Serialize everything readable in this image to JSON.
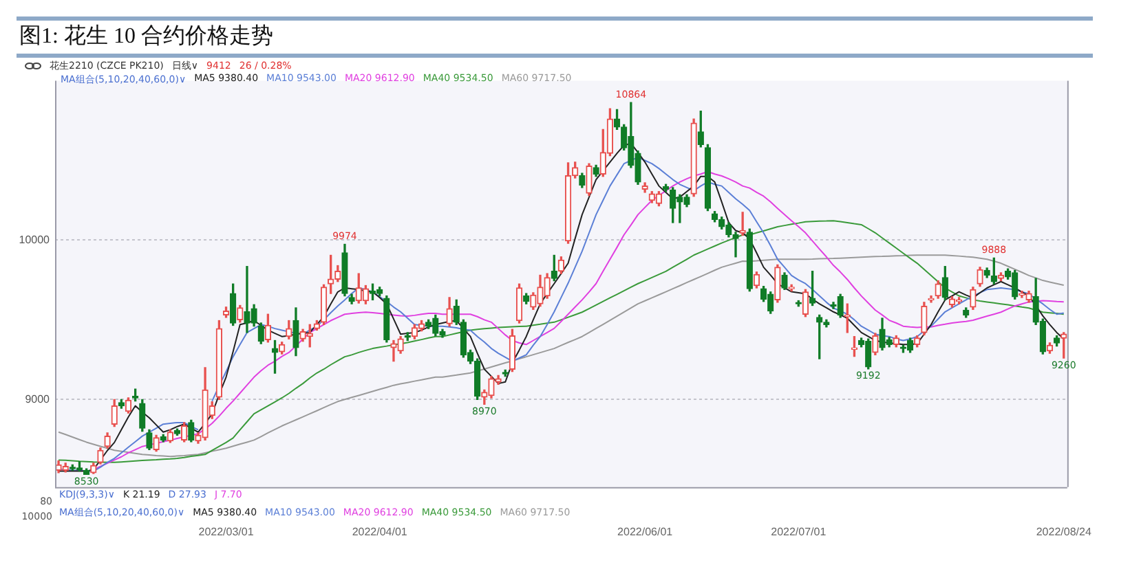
{
  "chart_data": {
    "type": "candlestick",
    "title": "图1: 花生 10 合约价格走势",
    "categories": [
      null,
      null,
      null,
      null,
      null,
      null,
      null,
      null,
      null,
      null,
      null,
      null,
      null,
      null,
      null,
      null,
      null,
      null,
      null,
      null,
      null,
      null,
      null,
      null,
      "2022/03/01",
      null,
      null,
      null,
      null,
      null,
      null,
      null,
      null,
      null,
      null,
      null,
      null,
      null,
      null,
      null,
      null,
      null,
      null,
      null,
      null,
      null,
      "2022/04/01",
      null,
      null,
      null,
      null,
      null,
      null,
      null,
      null,
      null,
      null,
      null,
      null,
      null,
      null,
      null,
      null,
      null,
      null,
      null,
      null,
      null,
      null,
      null,
      null,
      null,
      null,
      null,
      null,
      null,
      null,
      null,
      null,
      null,
      null,
      null,
      null,
      null,
      "2022/06/01",
      null,
      null,
      null,
      null,
      null,
      null,
      null,
      null,
      null,
      null,
      null,
      null,
      null,
      null,
      null,
      null,
      null,
      null,
      null,
      null,
      null,
      "2022/07/01",
      null,
      null,
      null,
      null,
      null,
      null,
      null,
      null,
      null,
      null,
      null,
      null,
      null,
      null,
      null,
      null,
      null,
      null,
      null,
      null,
      null,
      null,
      null,
      null,
      null,
      null,
      null,
      null,
      null,
      null,
      null,
      null,
      null,
      null,
      null,
      null,
      null,
      "2022/08/24"
    ],
    "ohlc": [
      [
        8555,
        8615,
        8540,
        8590
      ],
      [
        8555,
        8600,
        8545,
        8580
      ],
      [
        8575,
        8590,
        8555,
        8565
      ],
      [
        8570,
        8610,
        8550,
        8560
      ],
      [
        8555,
        8565,
        8530,
        8530
      ],
      [
        8540,
        8600,
        8535,
        8585
      ],
      [
        8605,
        8695,
        8595,
        8680
      ],
      [
        8705,
        8790,
        8695,
        8770
      ],
      [
        8845,
        9000,
        8830,
        8960
      ],
      [
        8980,
        9000,
        8945,
        8960
      ],
      [
        8925,
        9010,
        8915,
        8995
      ],
      [
        9020,
        9065,
        8990,
        9010
      ],
      [
        8975,
        9000,
        8800,
        8820
      ],
      [
        8790,
        8810,
        8685,
        8695
      ],
      [
        8685,
        8775,
        8675,
        8760
      ],
      [
        8765,
        8780,
        8735,
        8745
      ],
      [
        8740,
        8810,
        8730,
        8795
      ],
      [
        8805,
        8815,
        8775,
        8785
      ],
      [
        8745,
        8855,
        8735,
        8835
      ],
      [
        8855,
        8870,
        8735,
        8745
      ],
      [
        8740,
        8790,
        8725,
        8775
      ],
      [
        8760,
        9200,
        8745,
        9060
      ],
      [
        8900,
        8985,
        8880,
        8960
      ],
      [
        9015,
        9495,
        9000,
        9445
      ],
      [
        9530,
        9580,
        9515,
        9555
      ],
      [
        9665,
        9725,
        9465,
        9480
      ],
      [
        9500,
        9590,
        9485,
        9575
      ],
      [
        9550,
        9835,
        9420,
        9480
      ],
      [
        9570,
        9595,
        9460,
        9480
      ],
      [
        9460,
        9480,
        9350,
        9365
      ],
      [
        9375,
        9535,
        9360,
        9465
      ],
      [
        9320,
        9370,
        9165,
        9295
      ],
      [
        9300,
        9360,
        9285,
        9345
      ],
      [
        9395,
        9495,
        9380,
        9445
      ],
      [
        9495,
        9575,
        9275,
        9325
      ],
      [
        9380,
        9440,
        9365,
        9425
      ],
      [
        9395,
        9470,
        9330,
        9415
      ],
      [
        9445,
        9495,
        9435,
        9475
      ],
      [
        9485,
        9720,
        9470,
        9705
      ],
      [
        9725,
        9905,
        9665,
        9755
      ],
      [
        9755,
        9840,
        9740,
        9805
      ],
      [
        9920,
        9974,
        9650,
        9665
      ],
      [
        9640,
        9660,
        9600,
        9615
      ],
      [
        9620,
        9790,
        9605,
        9700
      ],
      [
        9620,
        9715,
        9600,
        9695
      ],
      [
        9680,
        9725,
        9625,
        9665
      ],
      [
        9690,
        9705,
        9650,
        9665
      ],
      [
        9635,
        9650,
        9360,
        9375
      ],
      [
        9325,
        9370,
        9240,
        9350
      ],
      [
        9305,
        9395,
        9290,
        9380
      ],
      [
        9400,
        9420,
        9370,
        9390
      ],
      [
        9395,
        9470,
        9380,
        9450
      ],
      [
        9445,
        9495,
        9430,
        9475
      ],
      [
        9485,
        9500,
        9445,
        9460
      ],
      [
        9510,
        9530,
        9400,
        9415
      ],
      [
        9425,
        9440,
        9390,
        9405
      ],
      [
        9475,
        9640,
        9460,
        9570
      ],
      [
        9585,
        9625,
        9470,
        9485
      ],
      [
        9485,
        9500,
        9265,
        9280
      ],
      [
        9295,
        9310,
        9225,
        9240
      ],
      [
        9240,
        9255,
        9000,
        9020
      ],
      [
        9015,
        9060,
        8970,
        9045
      ],
      [
        9025,
        9145,
        9010,
        9130
      ],
      [
        9110,
        9150,
        9095,
        9130
      ],
      [
        9170,
        9185,
        9145,
        9160
      ],
      [
        9190,
        9440,
        9175,
        9400
      ],
      [
        9495,
        9725,
        9480,
        9700
      ],
      [
        9650,
        9665,
        9600,
        9615
      ],
      [
        9580,
        9670,
        9565,
        9655
      ],
      [
        9600,
        9780,
        9585,
        9705
      ],
      [
        9650,
        9790,
        9635,
        9765
      ],
      [
        9805,
        9905,
        9745,
        9760
      ],
      [
        9805,
        9895,
        9790,
        9875
      ],
      [
        9995,
        10485,
        9980,
        10405
      ],
      [
        10405,
        10490,
        10390,
        10455
      ],
      [
        10405,
        10420,
        10330,
        10345
      ],
      [
        10295,
        10480,
        10280,
        10465
      ],
      [
        10455,
        10470,
        10400,
        10415
      ],
      [
        10415,
        10695,
        10400,
        10550
      ],
      [
        10545,
        10825,
        10530,
        10760
      ],
      [
        10760,
        10820,
        10695,
        10710
      ],
      [
        10710,
        10725,
        10565,
        10580
      ],
      [
        10650,
        10864,
        10455,
        10470
      ],
      [
        10545,
        10560,
        10350,
        10365
      ],
      [
        10320,
        10360,
        10300,
        10340
      ],
      [
        10250,
        10305,
        10235,
        10290
      ],
      [
        10230,
        10305,
        10215,
        10290
      ],
      [
        10335,
        10350,
        10305,
        10320
      ],
      [
        10315,
        10330,
        10110,
        10200
      ],
      [
        10270,
        10285,
        10110,
        10240
      ],
      [
        10270,
        10285,
        10210,
        10225
      ],
      [
        10290,
        10760,
        10275,
        10735
      ],
      [
        10680,
        10810,
        10585,
        10600
      ],
      [
        10580,
        10600,
        10185,
        10200
      ],
      [
        10165,
        10180,
        10115,
        10130
      ],
      [
        10130,
        10145,
        10070,
        10085
      ],
      [
        10095,
        10110,
        10020,
        10035
      ],
      [
        10035,
        10050,
        9895,
        10010
      ],
      [
        10045,
        10175,
        10030,
        10060
      ],
      [
        10050,
        10070,
        9680,
        9695
      ],
      [
        9715,
        9800,
        9700,
        9785
      ],
      [
        9695,
        9710,
        9615,
        9630
      ],
      [
        9660,
        9675,
        9540,
        9555
      ],
      [
        9625,
        9845,
        9610,
        9830
      ],
      [
        9780,
        9795,
        9690,
        9700
      ],
      [
        9695,
        9720,
        9680,
        9705
      ],
      [
        9605,
        9620,
        9585,
        9600
      ],
      [
        9535,
        9690,
        9520,
        9675
      ],
      [
        9635,
        9805,
        9590,
        9605
      ],
      [
        9515,
        9530,
        9255,
        9485
      ],
      [
        9485,
        9500,
        9455,
        9470
      ],
      [
        9595,
        9610,
        9570,
        9585
      ],
      [
        9645,
        9660,
        9515,
        9530
      ],
      [
        9520,
        9600,
        9420,
        9530
      ],
      [
        9315,
        9395,
        9270,
        9320
      ],
      [
        9370,
        9385,
        9330,
        9345
      ],
      [
        9365,
        9380,
        9192,
        9205
      ],
      [
        9295,
        9415,
        9280,
        9400
      ],
      [
        9440,
        9510,
        9310,
        9325
      ],
      [
        9375,
        9390,
        9330,
        9345
      ],
      [
        9345,
        9400,
        9330,
        9385
      ],
      [
        9325,
        9340,
        9295,
        9320
      ],
      [
        9370,
        9385,
        9295,
        9310
      ],
      [
        9345,
        9400,
        9330,
        9385
      ],
      [
        9420,
        9610,
        9405,
        9585
      ],
      [
        9625,
        9650,
        9610,
        9630
      ],
      [
        9650,
        9745,
        9635,
        9725
      ],
      [
        9765,
        9835,
        9625,
        9640
      ],
      [
        9595,
        9645,
        9580,
        9630
      ],
      [
        9615,
        9640,
        9600,
        9625
      ],
      [
        9560,
        9575,
        9515,
        9530
      ],
      [
        9580,
        9705,
        9565,
        9690
      ],
      [
        9725,
        9830,
        9710,
        9815
      ],
      [
        9810,
        9825,
        9765,
        9780
      ],
      [
        9775,
        9888,
        9725,
        9740
      ],
      [
        9760,
        9795,
        9745,
        9780
      ],
      [
        9805,
        9820,
        9755,
        9770
      ],
      [
        9795,
        9810,
        9630,
        9645
      ],
      [
        9655,
        9680,
        9640,
        9665
      ],
      [
        9625,
        9680,
        9610,
        9665
      ],
      [
        9645,
        9760,
        9470,
        9485
      ],
      [
        9490,
        9505,
        9285,
        9300
      ],
      [
        9305,
        9355,
        9290,
        9340
      ],
      [
        9385,
        9400,
        9335,
        9355
      ],
      [
        9385,
        9420,
        9260,
        9410
      ]
    ],
    "colors": [
      "#e8514f",
      "#e8514f",
      "#107c27",
      "#107c27",
      "#107c27",
      "#e8514f",
      "#e8514f",
      "#e8514f",
      "#e8514f",
      "#107c27",
      "#e8514f",
      "#107c27",
      "#107c27",
      "#107c27",
      "#e8514f",
      "#107c27",
      "#e8514f",
      "#107c27",
      "#e8514f",
      "#107c27",
      "#e8514f",
      "#e8514f",
      "#e8514f",
      "#e8514f",
      "#e8514f",
      "#107c27",
      "#e8514f",
      "#107c27",
      "#107c27",
      "#107c27",
      "#e8514f",
      "#107c27",
      "#e8514f",
      "#e8514f",
      "#107c27",
      "#e8514f",
      "#e8514f",
      "#e8514f",
      "#e8514f",
      "#e8514f",
      "#e8514f",
      "#107c27",
      "#107c27",
      "#e8514f",
      "#e8514f",
      "#107c27",
      "#107c27",
      "#107c27",
      "#e8514f",
      "#e8514f",
      "#107c27",
      "#e8514f",
      "#e8514f",
      "#107c27",
      "#107c27",
      "#107c27",
      "#e8514f",
      "#107c27",
      "#107c27",
      "#107c27",
      "#107c27",
      "#e8514f",
      "#e8514f",
      "#e8514f",
      "#107c27",
      "#e8514f",
      "#e8514f",
      "#107c27",
      "#e8514f",
      "#e8514f",
      "#e8514f",
      "#107c27",
      "#e8514f",
      "#e8514f",
      "#e8514f",
      "#107c27",
      "#e8514f",
      "#107c27",
      "#e8514f",
      "#e8514f",
      "#107c27",
      "#107c27",
      "#107c27",
      "#107c27",
      "#e8514f",
      "#e8514f",
      "#e8514f",
      "#107c27",
      "#107c27",
      "#107c27",
      "#107c27",
      "#e8514f",
      "#107c27",
      "#107c27",
      "#107c27",
      "#107c27",
      "#107c27",
      "#107c27",
      "#e8514f",
      "#107c27",
      "#e8514f",
      "#107c27",
      "#107c27",
      "#e8514f",
      "#107c27",
      "#e8514f",
      "#107c27",
      "#e8514f",
      "#107c27",
      "#107c27",
      "#107c27",
      "#107c27",
      "#107c27",
      "#e8514f",
      "#e8514f",
      "#107c27",
      "#107c27",
      "#e8514f",
      "#107c27",
      "#107c27",
      "#e8514f",
      "#107c27",
      "#107c27",
      "#e8514f",
      "#e8514f",
      "#e8514f",
      "#e8514f",
      "#107c27",
      "#e8514f",
      "#e8514f",
      "#107c27",
      "#e8514f",
      "#e8514f",
      "#107c27",
      "#107c27",
      "#e8514f",
      "#107c27",
      "#107c27",
      "#e8514f",
      "#e8514f",
      "#107c27",
      "#107c27",
      "#e8514f",
      "#107c27",
      "#e8514f"
    ],
    "series": [
      {
        "type": "line",
        "name": "MA5 9380.40",
        "color": "#222222",
        "values": [
          8550,
          8550,
          8550,
          8550,
          8550,
          8560,
          8620,
          8680,
          8730,
          8810,
          8890,
          8960,
          8920,
          8885,
          8840,
          8795,
          8810,
          8830,
          8845,
          8820,
          8795,
          8850,
          8910,
          9030,
          9140,
          9300,
          9470,
          9480,
          9495,
          9465,
          9435,
          9415,
          9395,
          9400,
          9410,
          9415,
          9420,
          9470,
          9520,
          9600,
          9675,
          9700,
          9695,
          9690,
          9680,
          9675,
          9640,
          9600,
          9505,
          9410,
          9415,
          9420,
          9435,
          9455,
          9470,
          9480,
          9490,
          9495,
          9445,
          9395,
          9290,
          9190,
          9145,
          9100,
          9110,
          9230,
          9310,
          9395,
          9500,
          9600,
          9665,
          9727,
          9790,
          9855,
          10010,
          10160,
          10270,
          10380,
          10435,
          10490,
          10545,
          10595,
          10607,
          10550,
          10490,
          10415,
          10340,
          10300,
          10260,
          10270,
          10305,
          10340,
          10400,
          10400,
          10365,
          10240,
          10110,
          10060,
          10045,
          10008,
          9920,
          9830,
          9780,
          9727,
          9700,
          9676,
          9670,
          9663,
          9630,
          9600,
          9575,
          9550,
          9530,
          9510,
          9465,
          9420,
          9395,
          9370,
          9360,
          9355,
          9350,
          9345,
          9345,
          9350,
          9410,
          9470,
          9550,
          9625,
          9650,
          9676,
          9655,
          9638,
          9670,
          9700,
          9720,
          9740,
          9720,
          9700,
          9675,
          9650,
          9590,
          9525,
          9470,
          9420,
          9380
        ]
      },
      {
        "type": "line",
        "name": "MA10 9543.00",
        "color": "#5b7fd6",
        "values": [
          8560,
          8560,
          8555,
          8555,
          8550,
          8550,
          8575,
          8605,
          8630,
          8665,
          8700,
          8735,
          8770,
          8795,
          8820,
          8845,
          8850,
          8855,
          8855,
          8830,
          8810,
          null,
          8990,
          9085,
          9175,
          9268,
          9345,
          9420,
          9445,
          9470,
          9460,
          9445,
          9435,
          9425,
          9415,
          9410,
          9435,
          9460,
          9500,
          9545,
          9587,
          9625,
          9665,
          9700,
          9690,
          9675,
          9645,
          9615,
          9580,
          9550,
          9510,
          9470,
          9465,
          9460,
          9460,
          9460,
          9455,
          9450,
          9440,
          9435,
          9395,
          9360,
          9320,
          9290,
          9265,
          9240,
          9260,
          9280,
          9340,
          9395,
          9470,
          9550,
          9640,
          9730,
          9830,
          9930,
          10045,
          10160,
          10250,
          10340,
          10410,
          10480,
          10500,
          10520,
          10500,
          10480,
          10450,
          10415,
          10380,
          10350,
          10330,
          10310,
          10340,
          10365,
          10350,
          10340,
          10300,
          10260,
          10225,
          10186,
          10115,
          10046,
          9965,
          9880,
          9830,
          9778,
          9750,
          9727,
          9690,
          9650,
          9610,
          9574,
          9555,
          9535,
          9500,
          9460,
          9435,
          9410,
          9400,
          9395,
          9380,
          9370,
          9380,
          9395,
          9430,
          9460,
          9505,
          9550,
          9575,
          9600,
          9625,
          9650,
          9670,
          9690,
          9695,
          9700,
          9695,
          9690,
          9675,
          9663,
          9630,
          9600,
          9565,
          9535,
          9543
        ]
      },
      {
        "type": "line",
        "name": "MA20 9612.90",
        "color": "#e040e0",
        "values": [
          null,
          null,
          null,
          null,
          8545,
          8560,
          8580,
          8600,
          8620,
          8640,
          8665,
          8685,
          8705,
          8715,
          8725,
          8735,
          8745,
          8755,
          8765,
          8775,
          8785,
          8815,
          8850,
          8895,
          8945,
          8990,
          9040,
          9090,
          9140,
          9180,
          9215,
          9240,
          9270,
          9295,
          9335,
          9380,
          9420,
          9445,
          9470,
          9495,
          9515,
          9535,
          9540,
          9545,
          9548,
          9545,
          9540,
          9535,
          9530,
          9525,
          9523,
          9528,
          9535,
          9540,
          9540,
          9535,
          9535,
          9535,
          9535,
          9535,
          9520,
          9500,
          9485,
          9445,
          9405,
          9370,
          9355,
          9345,
          9370,
          9395,
          9420,
          9446,
          9490,
          9535,
          9580,
          9625,
          9675,
          9727,
          9805,
          9880,
          9955,
          10033,
          10095,
          10160,
          10205,
          10250,
          10280,
          10310,
          10340,
          10365,
          10385,
          10403,
          10415,
          10430,
          10415,
          10403,
          10385,
          10365,
          10340,
          10327,
          10300,
          10276,
          10240,
          10199,
          10160,
          10122,
          10085,
          10046,
          9995,
          9944,
          9895,
          9842,
          9800,
          9753,
          9700,
          9650,
          9605,
          9561,
          9530,
          9497,
          9480,
          9460,
          9455,
          9452,
          9455,
          9455,
          9465,
          9472,
          9480,
          9485,
          9490,
          9497,
          9510,
          9523,
          9535,
          9548,
          9568,
          9587,
          9600,
          9612,
          9616,
          9620,
          9618,
          9615,
          9613
        ]
      },
      {
        "type": "line",
        "name": "MA40 9534.50",
        "color": "#3a9a3a",
        "values": [
          8620,
          8618,
          8615,
          8612,
          8610,
          8608,
          8607,
          8606,
          8605,
          8608,
          8611,
          8614,
          8617,
          8620,
          8622,
          8625,
          8627,
          8630,
          8636,
          8643,
          8649,
          8655,
          8680,
          8705,
          8730,
          8758,
          8810,
          8860,
          8910,
          8935,
          8960,
          8985,
          9010,
          9038,
          9070,
          9100,
          9135,
          9166,
          9190,
          9218,
          9243,
          9268,
          9280,
          9295,
          9308,
          9320,
          9328,
          9335,
          9343,
          9350,
          9357,
          9367,
          9376,
          9386,
          9395,
          9395,
          9405,
          9415,
          9425,
          9435,
          9440,
          9444,
          9448,
          9452,
          9454,
          9456,
          9458,
          9460,
          9466,
          9472,
          9479,
          9485,
          9500,
          9516,
          9532,
          9548,
          9570,
          9593,
          9615,
          9638,
          9660,
          9682,
          9705,
          9727,
          9746,
          9765,
          9785,
          9804,
          9830,
          9855,
          9880,
          9906,
          9925,
          9944,
          9963,
          9982,
          9999,
          10016,
          10033,
          10033,
          10046,
          10058,
          10071,
          10084,
          10092,
          10100,
          10107,
          10115,
          10117,
          10119,
          10120,
          10122,
          10116,
          10110,
          10103,
          10097,
          10072,
          10046,
          10014,
          9982,
          9950,
          9918,
          9886,
          9855,
          9816,
          9778,
          9739,
          9700,
          9675,
          9650,
          9638,
          9625,
          9618,
          9612,
          9606,
          9600,
          9594,
          9587,
          9580,
          9574,
          9561,
          9548,
          9544,
          9540,
          9535
        ]
      },
      {
        "type": "line",
        "name": "MA60 9717.50",
        "color": "#9a9a9a",
        "values": [
          8795,
          8780,
          8764,
          8748,
          8732,
          8719,
          8706,
          8694,
          8681,
          8675,
          8668,
          8662,
          8655,
          8652,
          8648,
          8645,
          8642,
          8645,
          8648,
          8652,
          8655,
          8665,
          8675,
          8684,
          8694,
          8707,
          8720,
          8732,
          8745,
          8767,
          8790,
          8812,
          8834,
          8853,
          8872,
          8891,
          8910,
          8929,
          8949,
          8968,
          8987,
          9000,
          9013,
          9025,
          9038,
          9051,
          9064,
          9076,
          9089,
          9098,
          9106,
          9115,
          9123,
          9132,
          9140,
          9140,
          9147,
          9153,
          9160,
          9166,
          9179,
          9191,
          9204,
          9217,
          9230,
          9242,
          9255,
          9268,
          9281,
          9294,
          9307,
          9320,
          9339,
          9358,
          9376,
          9395,
          9420,
          9446,
          9471,
          9497,
          9523,
          9548,
          9574,
          9600,
          9619,
          9638,
          9657,
          9676,
          9695,
          9714,
          9734,
          9753,
          9772,
          9791,
          9811,
          9830,
          9843,
          9855,
          9868,
          9867,
          9870,
          9874,
          9877,
          9880,
          9880,
          9880,
          9880,
          9880,
          9881,
          9883,
          9884,
          9885,
          9887,
          9889,
          9891,
          9893,
          9895,
          9897,
          9898,
          9900,
          9902,
          9903,
          9905,
          9906,
          9906,
          9906,
          9906,
          9906,
          9903,
          9900,
          9896,
          9893,
          9887,
          9880,
          9868,
          9855,
          9836,
          9817,
          9798,
          9778,
          9763,
          9747,
          9737,
          9727,
          9717
        ]
      }
    ],
    "ylim": [
      8450,
      11000
    ],
    "yticks": [
      9000,
      10000
    ],
    "grid": "y",
    "annotations": [
      "花生2210 (CZCE PK210)",
      "日线∨",
      "9412",
      "26 / 0.28%",
      "MA组合(5,10,20,40,60,0)∨",
      "KDJ(9,3,3)∨",
      "K 21.19",
      "D 27.93",
      "J 7.70",
      "80",
      "10000",
      {
        "text": "10864",
        "y": 10864
      },
      {
        "text": "9974",
        "y": 9974
      },
      {
        "text": "9888",
        "y": 9888
      },
      {
        "text": "8970",
        "y": 8970
      },
      {
        "text": "9192",
        "y": 9192
      },
      {
        "text": "9260",
        "y": 9260
      },
      {
        "text": "8530",
        "y": 8530
      }
    ]
  }
}
